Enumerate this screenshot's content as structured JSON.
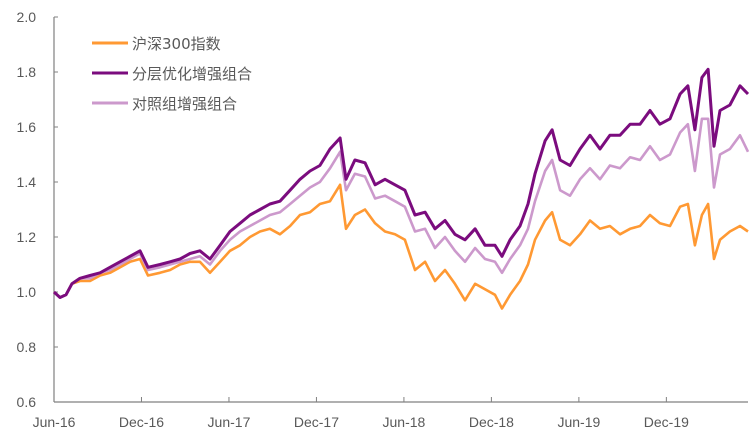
{
  "chart_data": {
    "type": "line",
    "title": "",
    "xlabel": "",
    "ylabel": "",
    "x_unit": "months since Jun-16",
    "ylim": [
      0.6,
      2.0
    ],
    "xlim": [
      0,
      47.6
    ],
    "yticks": [
      "0.6",
      "0.8",
      "1.0",
      "1.2",
      "1.4",
      "1.6",
      "1.8",
      "2.0"
    ],
    "xticks": [
      {
        "label": "Jun-16",
        "month": 0
      },
      {
        "label": "Dec-16",
        "month": 6
      },
      {
        "label": "Jun-17",
        "month": 12
      },
      {
        "label": "Dec-17",
        "month": 18
      },
      {
        "label": "Jun-18",
        "month": 24
      },
      {
        "label": "Dec-18",
        "month": 30
      },
      {
        "label": "Jun-19",
        "month": 36
      },
      {
        "label": "Dec-19",
        "month": 42
      }
    ],
    "grid": false,
    "legend_position": "top-left",
    "x": [
      0,
      0.41,
      0.82,
      1.23,
      1.78,
      2.47,
      3.16,
      3.84,
      4.53,
      5.21,
      5.9,
      6.45,
      7.27,
      7.96,
      8.64,
      9.33,
      10.01,
      10.7,
      11.39,
      12.07,
      12.76,
      13.44,
      14.13,
      14.81,
      15.5,
      16.19,
      16.87,
      17.56,
      18.24,
      18.93,
      19.62,
      20.03,
      20.64,
      21.33,
      22.02,
      22.7,
      23.39,
      24.07,
      24.76,
      25.45,
      26.13,
      26.82,
      27.5,
      28.19,
      28.88,
      29.56,
      30.25,
      30.73,
      31.28,
      31.96,
      32.51,
      32.99,
      33.68,
      34.16,
      34.71,
      35.39,
      36.08,
      36.76,
      37.45,
      38.13,
      38.82,
      39.51,
      40.19,
      40.88,
      41.56,
      42.25,
      42.94,
      43.48,
      43.96,
      44.44,
      44.86,
      45.27,
      45.68,
      46.36,
      47.05,
      47.6
    ],
    "series": [
      {
        "name": "沪深300指数",
        "color": "#FF9933",
        "values": [
          1.0,
          0.98,
          0.99,
          1.03,
          1.04,
          1.04,
          1.06,
          1.07,
          1.09,
          1.11,
          1.12,
          1.06,
          1.07,
          1.08,
          1.1,
          1.11,
          1.11,
          1.07,
          1.11,
          1.15,
          1.17,
          1.2,
          1.22,
          1.23,
          1.21,
          1.24,
          1.28,
          1.29,
          1.32,
          1.33,
          1.39,
          1.23,
          1.28,
          1.3,
          1.25,
          1.22,
          1.21,
          1.19,
          1.08,
          1.11,
          1.04,
          1.08,
          1.03,
          0.97,
          1.03,
          1.01,
          0.99,
          0.94,
          0.99,
          1.04,
          1.1,
          1.19,
          1.26,
          1.29,
          1.19,
          1.17,
          1.21,
          1.26,
          1.23,
          1.24,
          1.21,
          1.23,
          1.24,
          1.28,
          1.25,
          1.24,
          1.31,
          1.32,
          1.17,
          1.28,
          1.32,
          1.12,
          1.19,
          1.22,
          1.24,
          1.22
        ]
      },
      {
        "name": "分层优化增强组合",
        "color": "#7B0C7E",
        "values": [
          1.0,
          0.98,
          0.99,
          1.03,
          1.05,
          1.06,
          1.07,
          1.09,
          1.11,
          1.13,
          1.15,
          1.09,
          1.1,
          1.11,
          1.12,
          1.14,
          1.15,
          1.12,
          1.17,
          1.22,
          1.25,
          1.28,
          1.3,
          1.32,
          1.33,
          1.37,
          1.41,
          1.44,
          1.46,
          1.52,
          1.56,
          1.41,
          1.48,
          1.47,
          1.39,
          1.41,
          1.39,
          1.37,
          1.28,
          1.29,
          1.23,
          1.26,
          1.21,
          1.19,
          1.23,
          1.17,
          1.17,
          1.13,
          1.19,
          1.24,
          1.32,
          1.43,
          1.55,
          1.59,
          1.48,
          1.46,
          1.52,
          1.57,
          1.52,
          1.57,
          1.57,
          1.61,
          1.61,
          1.66,
          1.61,
          1.63,
          1.72,
          1.75,
          1.59,
          1.78,
          1.81,
          1.53,
          1.66,
          1.68,
          1.75,
          1.72
        ]
      },
      {
        "name": "对照组增强组合",
        "color": "#CC99CC",
        "values": [
          1.0,
          0.98,
          0.99,
          1.03,
          1.05,
          1.05,
          1.07,
          1.08,
          1.1,
          1.12,
          1.14,
          1.08,
          1.09,
          1.1,
          1.11,
          1.12,
          1.13,
          1.1,
          1.15,
          1.19,
          1.22,
          1.24,
          1.26,
          1.28,
          1.29,
          1.32,
          1.35,
          1.38,
          1.4,
          1.45,
          1.51,
          1.37,
          1.43,
          1.42,
          1.34,
          1.35,
          1.33,
          1.31,
          1.22,
          1.23,
          1.16,
          1.2,
          1.15,
          1.11,
          1.16,
          1.12,
          1.11,
          1.07,
          1.12,
          1.17,
          1.23,
          1.33,
          1.44,
          1.48,
          1.37,
          1.35,
          1.41,
          1.45,
          1.41,
          1.46,
          1.45,
          1.49,
          1.48,
          1.53,
          1.48,
          1.5,
          1.58,
          1.61,
          1.44,
          1.63,
          1.63,
          1.38,
          1.5,
          1.52,
          1.57,
          1.51
        ]
      }
    ]
  }
}
